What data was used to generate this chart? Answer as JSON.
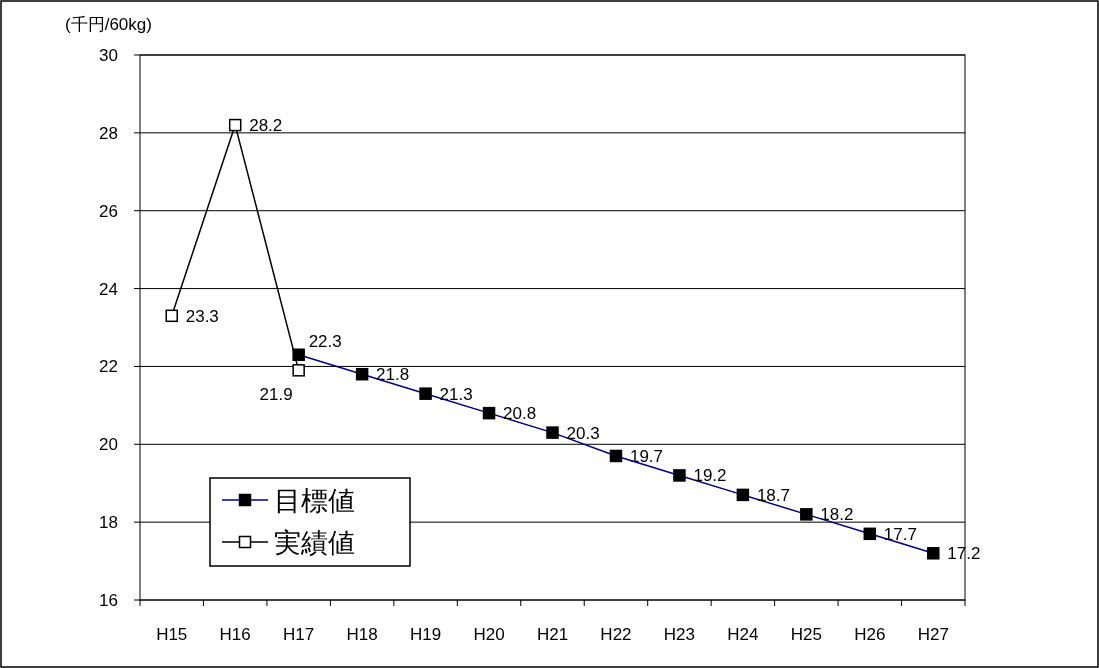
{
  "chart_data": {
    "type": "line",
    "ylabel": "(千円/60kg)",
    "categories": [
      "H15",
      "H16",
      "H17",
      "H18",
      "H19",
      "H20",
      "H21",
      "H22",
      "H23",
      "H24",
      "H25",
      "H26",
      "H27"
    ],
    "series": [
      {
        "name": "目標値",
        "color": "#000080",
        "values": [
          null,
          null,
          22.3,
          21.8,
          21.3,
          20.8,
          20.3,
          19.7,
          19.2,
          18.7,
          18.2,
          17.7,
          17.2
        ]
      },
      {
        "name": "実績値",
        "color": "#000000",
        "values": [
          23.3,
          28.2,
          21.9,
          null,
          null,
          null,
          null,
          null,
          null,
          null,
          null,
          null,
          null
        ]
      }
    ],
    "ylim": [
      16,
      30
    ],
    "yticks": [
      16,
      18,
      20,
      22,
      24,
      26,
      28,
      30
    ],
    "grid": "y",
    "legend": "bottom left",
    "marker": "square",
    "data_labels": true
  }
}
